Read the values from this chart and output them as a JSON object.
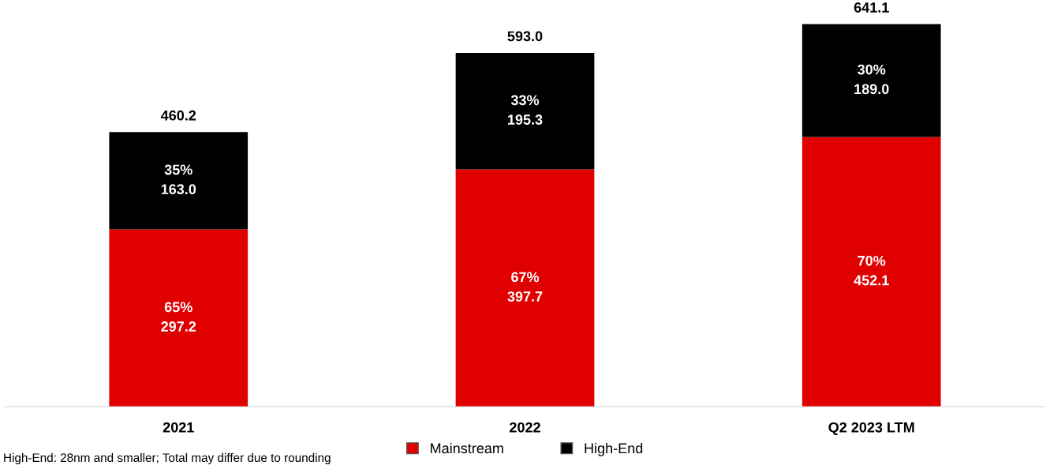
{
  "chart_data": {
    "type": "bar",
    "stacked": true,
    "categories": [
      "2021",
      "2022",
      "Q2 2023 LTM"
    ],
    "series": [
      {
        "name": "Mainstream",
        "color": "#e00000",
        "values": [
          297.2,
          397.7,
          452.1
        ],
        "value_labels": [
          "65%\n297.2",
          "67%\n397.7",
          "70%\n452.1"
        ]
      },
      {
        "name": "High-End",
        "color": "#000000",
        "values": [
          163.0,
          195.3,
          189.0
        ],
        "value_labels": [
          "35%\n163.0",
          "33%\n195.3",
          "30%\n189.0"
        ]
      }
    ],
    "totals": [
      "460.2",
      "593.0",
      "641.1"
    ],
    "legend": "bottom",
    "grid": false,
    "tick_labels": "x",
    "annotations": [
      "High-End: 28nm and smaller; Total may differ due to rounding"
    ]
  }
}
